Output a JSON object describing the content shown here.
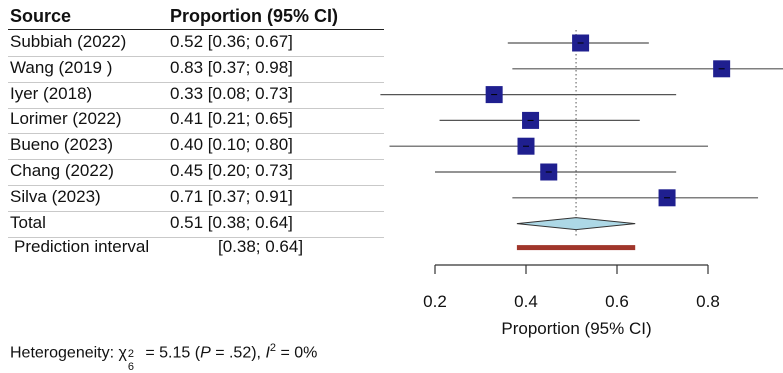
{
  "header": {
    "source_label": "Source",
    "proportion_label": "Proportion (95% CI)"
  },
  "chart_data": {
    "type": "forest",
    "xlabel": "Proportion (95% CI)",
    "xlim": [
      0.0,
      0.8
    ],
    "xticks": [
      0.2,
      0.4,
      0.6,
      0.8
    ],
    "xtick_labels": [
      "0.2",
      "0.4",
      "0.6",
      "0.8"
    ],
    "studies": [
      {
        "source": "Subbiah (2022)",
        "ci_text": "0.52 [0.36; 0.67]",
        "estimate": 0.52,
        "lower": 0.36,
        "upper": 0.67
      },
      {
        "source": "Wang (2019 )",
        "ci_text": "0.83 [0.37; 0.98]",
        "estimate": 0.83,
        "lower": 0.37,
        "upper": 0.98
      },
      {
        "source": "Iyer (2018)",
        "ci_text": "0.33 [0.08; 0.73]",
        "estimate": 0.33,
        "lower": 0.08,
        "upper": 0.73
      },
      {
        "source": "Lorimer (2022)",
        "ci_text": "0.41 [0.21; 0.65]",
        "estimate": 0.41,
        "lower": 0.21,
        "upper": 0.65
      },
      {
        "source": "Bueno (2023)",
        "ci_text": "0.40 [0.10; 0.80]",
        "estimate": 0.4,
        "lower": 0.1,
        "upper": 0.8
      },
      {
        "source": "Chang (2022)",
        "ci_text": "0.45 [0.20; 0.73]",
        "estimate": 0.45,
        "lower": 0.2,
        "upper": 0.73
      },
      {
        "source": "Silva (2023)",
        "ci_text": "0.71 [0.37; 0.91]",
        "estimate": 0.71,
        "lower": 0.37,
        "upper": 0.91
      }
    ],
    "total": {
      "label": "Total",
      "ci_text": "0.51 [0.38; 0.64]",
      "estimate": 0.51,
      "lower": 0.38,
      "upper": 0.64
    },
    "prediction_interval": {
      "label": "Prediction interval",
      "ci_text": "[0.38; 0.64]",
      "lower": 0.38,
      "upper": 0.64
    },
    "colors": {
      "study_marker": "#1f1f8f",
      "summary_diamond": "#add8e6",
      "prediction_bar": "#a0362b",
      "reference_line": "#555555"
    }
  },
  "heterogeneity": {
    "prefix": "Heterogeneity: ",
    "chi_symbol": "χ",
    "chi_sub": "6",
    "chi_sup": "2",
    "chi_value": " = 5.15 (",
    "p_symbol": "P",
    "p_value": " = .52), ",
    "i_symbol": "I",
    "i_sup": "2",
    "i_value": " = 0%"
  }
}
